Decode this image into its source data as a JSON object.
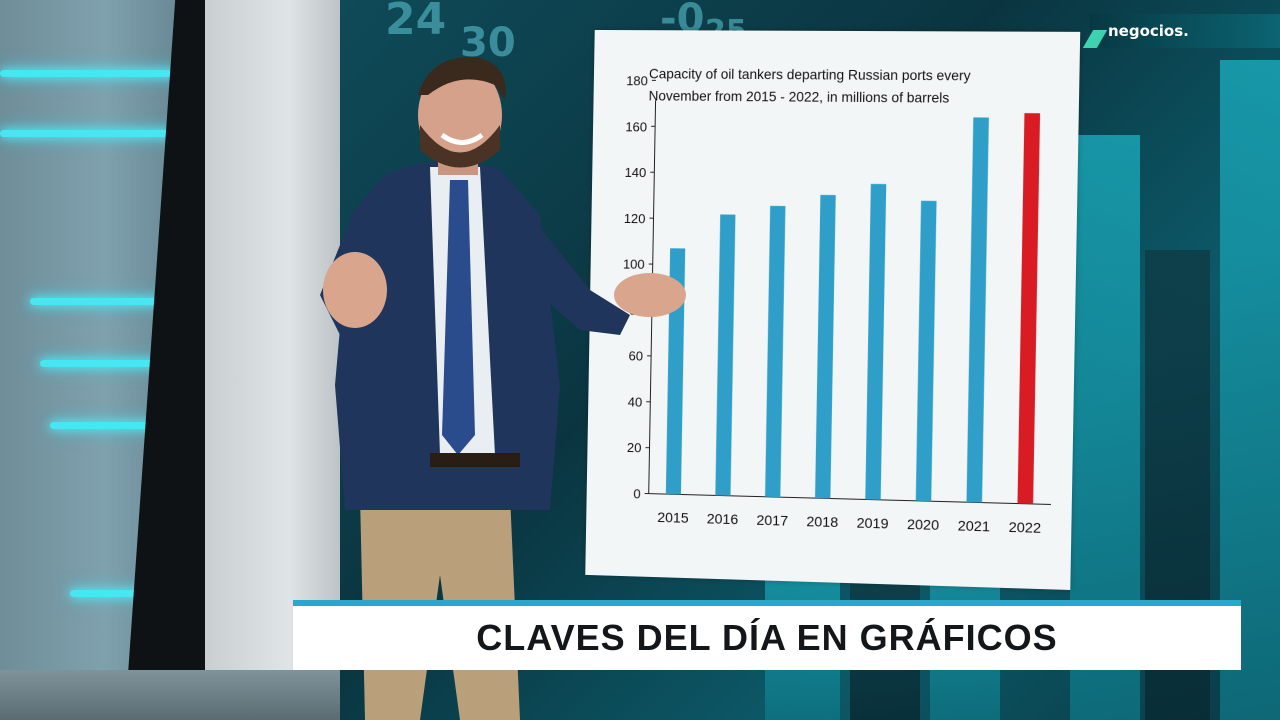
{
  "broadcast": {
    "channel_logo": "negocios.",
    "lower_third_title": "CLAVES DEL DÍA EN GRÁFICOS",
    "accent_color": "#2aa8c7"
  },
  "background_tickers": [
    "24",
    "30",
    "-0",
    "25"
  ],
  "chart_data": {
    "type": "bar",
    "title_lines": [
      "Capacity of oil tankers departing Russian ports every",
      "November from 2015 - 2022,  in millions of barrels"
    ],
    "categories": [
      "2015",
      "2016",
      "2017",
      "2018",
      "2019",
      "2020",
      "2021",
      "2022"
    ],
    "values": [
      107,
      122,
      126,
      131,
      136,
      129,
      165,
      167
    ],
    "highlight_index": 7,
    "colors": {
      "default": "#2f9fc9",
      "highlight": "#d91c24"
    },
    "ylim": [
      0,
      180
    ],
    "yticks": [
      "0",
      "20",
      "40",
      "60",
      "80",
      "100",
      "120",
      "140",
      "160",
      "180"
    ],
    "xlabel": "",
    "ylabel": "",
    "grid": false,
    "legend": "none"
  }
}
